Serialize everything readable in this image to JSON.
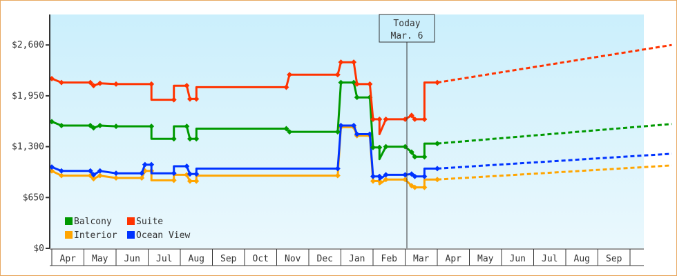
{
  "chart_data": {
    "type": "line",
    "title": "",
    "xlabel": "",
    "ylabel": "",
    "ylim": [
      0,
      2990
    ],
    "y_ticks": [
      {
        "label": "$2,600",
        "value": 2600
      },
      {
        "label": "$1,950",
        "value": 1950
      },
      {
        "label": "$1,300",
        "value": 1300
      },
      {
        "label": "$650",
        "value": 650
      },
      {
        "label": "$0",
        "value": 0
      }
    ],
    "x_ticks": [
      "Apr",
      "May",
      "Jun",
      "Jul",
      "Aug",
      "Sep",
      "Oct",
      "Nov",
      "Dec",
      "Jan",
      "Feb",
      "Mar",
      "Apr",
      "May",
      "Jun",
      "Jul",
      "Aug",
      "Sep"
    ],
    "today_marker": {
      "line1": "Today",
      "line2": "Mar. 6"
    },
    "legend": [
      {
        "name": "Balcony",
        "color": "#009900"
      },
      {
        "name": "Suite",
        "color": "#ff3300"
      },
      {
        "name": "Interior",
        "color": "#ffa500"
      },
      {
        "name": "Ocean View",
        "color": "#0033ff"
      }
    ],
    "grid": false,
    "legend_position": "bottom-left inside",
    "series": [
      {
        "name": "Suite",
        "color": "#ff3300",
        "history": [
          [
            0,
            2170
          ],
          [
            0.3,
            2120
          ],
          [
            1.2,
            2120
          ],
          [
            1.3,
            2080
          ],
          [
            1.5,
            2110
          ],
          [
            2,
            2100
          ],
          [
            3.1,
            2100
          ],
          [
            3.1,
            1900
          ],
          [
            3.8,
            1900
          ],
          [
            3.8,
            2080
          ],
          [
            4.2,
            2080
          ],
          [
            4.3,
            1910
          ],
          [
            4.5,
            1910
          ],
          [
            4.5,
            2060
          ],
          [
            7.3,
            2060
          ],
          [
            7.4,
            2220
          ],
          [
            8.9,
            2220
          ],
          [
            9,
            2380
          ],
          [
            9.4,
            2380
          ],
          [
            9.5,
            2100
          ],
          [
            9.9,
            2100
          ],
          [
            10,
            1650
          ],
          [
            10.2,
            1650
          ],
          [
            10.2,
            1460
          ],
          [
            10.4,
            1650
          ],
          [
            11,
            1650
          ],
          [
            11.2,
            1700
          ],
          [
            11.3,
            1650
          ],
          [
            11.6,
            1650
          ],
          [
            11.6,
            2120
          ],
          [
            12,
            2120
          ]
        ],
        "forecast": [
          [
            12,
            2120
          ],
          [
            19.3,
            2600
          ]
        ]
      },
      {
        "name": "Balcony",
        "color": "#009900",
        "history": [
          [
            0,
            1620
          ],
          [
            0.3,
            1570
          ],
          [
            1.2,
            1570
          ],
          [
            1.3,
            1540
          ],
          [
            1.5,
            1570
          ],
          [
            2,
            1560
          ],
          [
            3.1,
            1560
          ],
          [
            3.1,
            1400
          ],
          [
            3.8,
            1400
          ],
          [
            3.8,
            1560
          ],
          [
            4.2,
            1560
          ],
          [
            4.3,
            1400
          ],
          [
            4.5,
            1400
          ],
          [
            4.5,
            1530
          ],
          [
            7.3,
            1530
          ],
          [
            7.4,
            1490
          ],
          [
            8.9,
            1490
          ],
          [
            9,
            2120
          ],
          [
            9.4,
            2120
          ],
          [
            9.5,
            1930
          ],
          [
            9.9,
            1930
          ],
          [
            10,
            1290
          ],
          [
            10.2,
            1290
          ],
          [
            10.2,
            1140
          ],
          [
            10.4,
            1300
          ],
          [
            11,
            1300
          ],
          [
            11.2,
            1230
          ],
          [
            11.3,
            1170
          ],
          [
            11.6,
            1170
          ],
          [
            11.6,
            1340
          ],
          [
            12,
            1340
          ]
        ],
        "forecast": [
          [
            12,
            1340
          ],
          [
            19.3,
            1590
          ]
        ]
      },
      {
        "name": "Ocean View",
        "color": "#0033ff",
        "history": [
          [
            0,
            1040
          ],
          [
            0.3,
            990
          ],
          [
            1.2,
            990
          ],
          [
            1.3,
            940
          ],
          [
            1.5,
            990
          ],
          [
            2,
            960
          ],
          [
            2.8,
            960
          ],
          [
            2.9,
            1070
          ],
          [
            3.1,
            1070
          ],
          [
            3.1,
            960
          ],
          [
            3.8,
            960
          ],
          [
            3.8,
            1050
          ],
          [
            4.2,
            1050
          ],
          [
            4.3,
            950
          ],
          [
            4.5,
            950
          ],
          [
            4.5,
            1020
          ],
          [
            8.9,
            1020
          ],
          [
            9,
            1570
          ],
          [
            9.4,
            1570
          ],
          [
            9.5,
            1460
          ],
          [
            9.9,
            1460
          ],
          [
            10,
            920
          ],
          [
            10.2,
            920
          ],
          [
            10.2,
            880
          ],
          [
            10.4,
            940
          ],
          [
            11,
            940
          ],
          [
            11.2,
            950
          ],
          [
            11.3,
            920
          ],
          [
            11.6,
            920
          ],
          [
            11.6,
            1020
          ],
          [
            12,
            1020
          ]
        ],
        "forecast": [
          [
            12,
            1020
          ],
          [
            19.3,
            1210
          ]
        ]
      },
      {
        "name": "Interior",
        "color": "#ffa500",
        "history": [
          [
            0,
            990
          ],
          [
            0.3,
            930
          ],
          [
            1.2,
            930
          ],
          [
            1.3,
            890
          ],
          [
            1.5,
            930
          ],
          [
            2,
            900
          ],
          [
            2.8,
            900
          ],
          [
            2.9,
            990
          ],
          [
            3.1,
            990
          ],
          [
            3.1,
            870
          ],
          [
            3.8,
            870
          ],
          [
            3.8,
            940
          ],
          [
            4.2,
            940
          ],
          [
            4.3,
            860
          ],
          [
            4.5,
            860
          ],
          [
            4.5,
            930
          ],
          [
            8.9,
            930
          ],
          [
            9,
            1550
          ],
          [
            9.4,
            1550
          ],
          [
            9.5,
            1440
          ],
          [
            9.9,
            1440
          ],
          [
            10,
            860
          ],
          [
            10.2,
            860
          ],
          [
            10.2,
            820
          ],
          [
            10.4,
            880
          ],
          [
            11,
            880
          ],
          [
            11.2,
            800
          ],
          [
            11.3,
            780
          ],
          [
            11.6,
            780
          ],
          [
            11.6,
            880
          ],
          [
            12,
            880
          ]
        ],
        "forecast": [
          [
            12,
            880
          ],
          [
            19.3,
            1060
          ]
        ]
      }
    ]
  }
}
